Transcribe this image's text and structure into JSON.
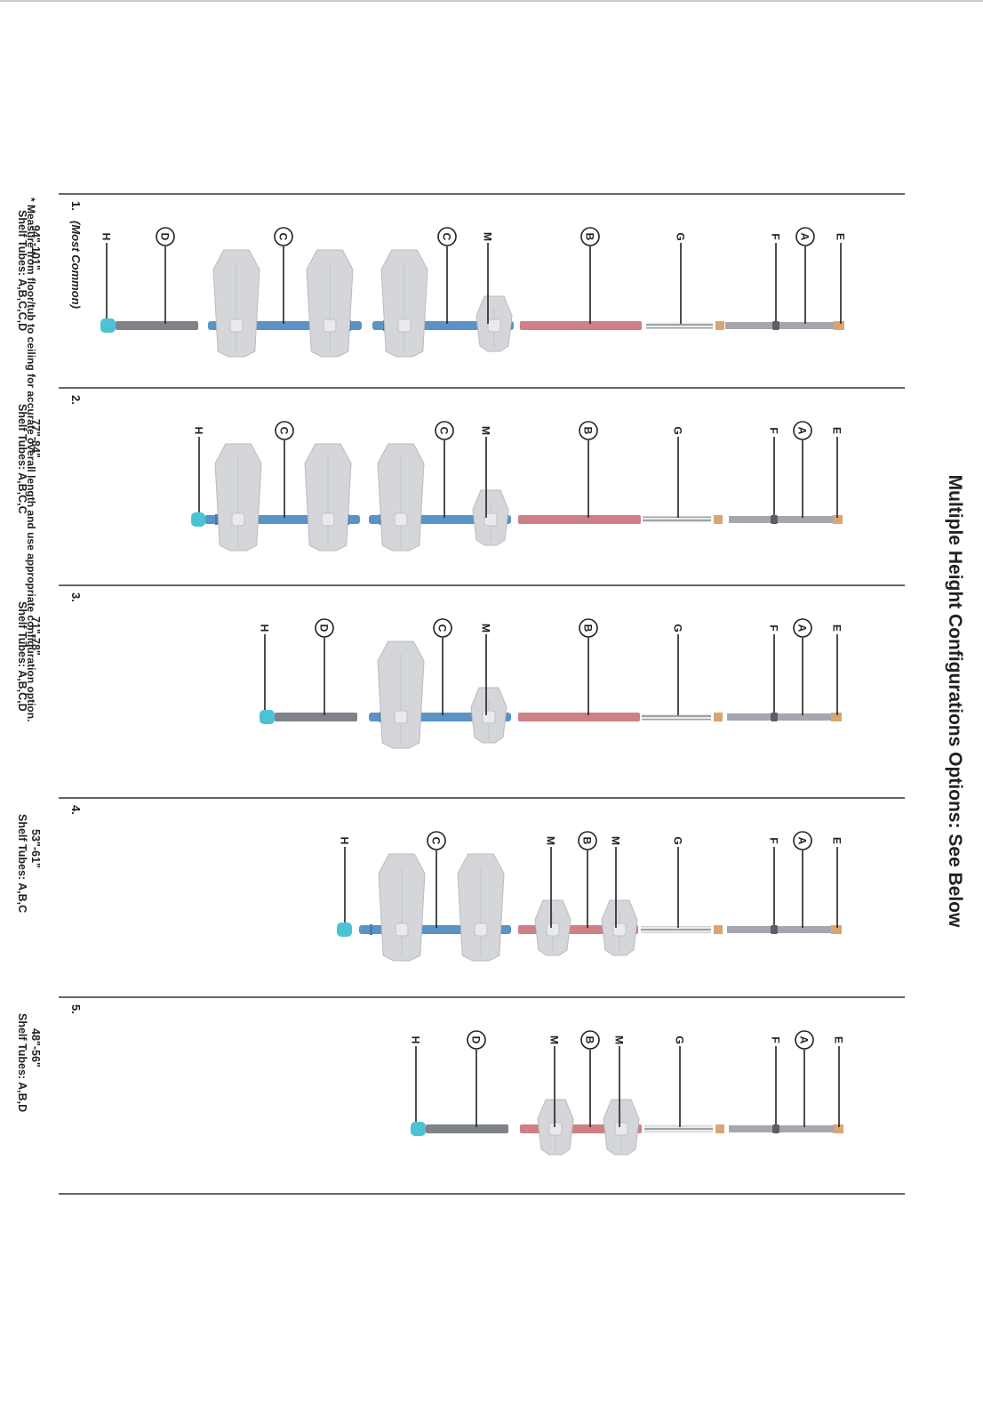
{
  "title": "Multiple Height Configurations Options: See Below",
  "configs": [
    {
      "number": "1.",
      "note": "(Most Common)",
      "tubes": "Shelf Tubes: A,B,C,C,D",
      "range": "94\"-101\"",
      "labels": {
        "E": "E",
        "A": "A",
        "F": "F",
        "G": "G",
        "B": "B",
        "M": "M",
        "C1": "C",
        "C2": "C",
        "D": "D",
        "H": "H"
      }
    },
    {
      "number": "2.",
      "tubes": "Shelf Tubes: A,B,C,C",
      "range": "77\"-84\"",
      "labels": {
        "E": "E",
        "A": "A",
        "F": "F",
        "G": "G",
        "B": "B",
        "M": "M",
        "C1": "C",
        "C2": "C",
        "H": "H"
      }
    },
    {
      "number": "3.",
      "tubes": "Shelf Tubes: A,B,C,D",
      "range": "71\"-78\"",
      "labels": {
        "E": "E",
        "A": "A",
        "F": "F",
        "G": "G",
        "B": "B",
        "M": "M",
        "C1": "C",
        "D": "D",
        "H": "H"
      }
    },
    {
      "number": "4.",
      "tubes": "Shelf Tubes: A,B,C",
      "range": "53\"-61\"",
      "labels": {
        "E": "E",
        "A": "A",
        "F": "F",
        "G": "G",
        "M1": "M",
        "B": "B",
        "M2": "M",
        "C1": "C",
        "H": "H"
      }
    },
    {
      "number": "5.",
      "tubes": "Shelf Tubes: A,B,D",
      "range": "48\"-56\"",
      "labels": {
        "E": "E",
        "A": "A",
        "F": "F",
        "G": "G",
        "M1": "M",
        "B": "B",
        "M2": "M",
        "D": "D",
        "H": "H"
      }
    }
  ],
  "footnote": "* Measure from floor/tub to ceiling for accurate overall length and use appropriate configuration option.",
  "colors": {
    "end_cap": "#d8a673",
    "tube_a": "#a4a8ad",
    "tube_a_joint": "#5b5f63",
    "spring": "#b8bcc0",
    "tube_b": "#cf7f86",
    "tube_c": "#5c93c7",
    "tube_d": "#7f8387",
    "foot": "#4cc3d4",
    "shelf": "#d4d6d9",
    "shelf_edge": "#b9bcbf",
    "rule": "#333333"
  }
}
